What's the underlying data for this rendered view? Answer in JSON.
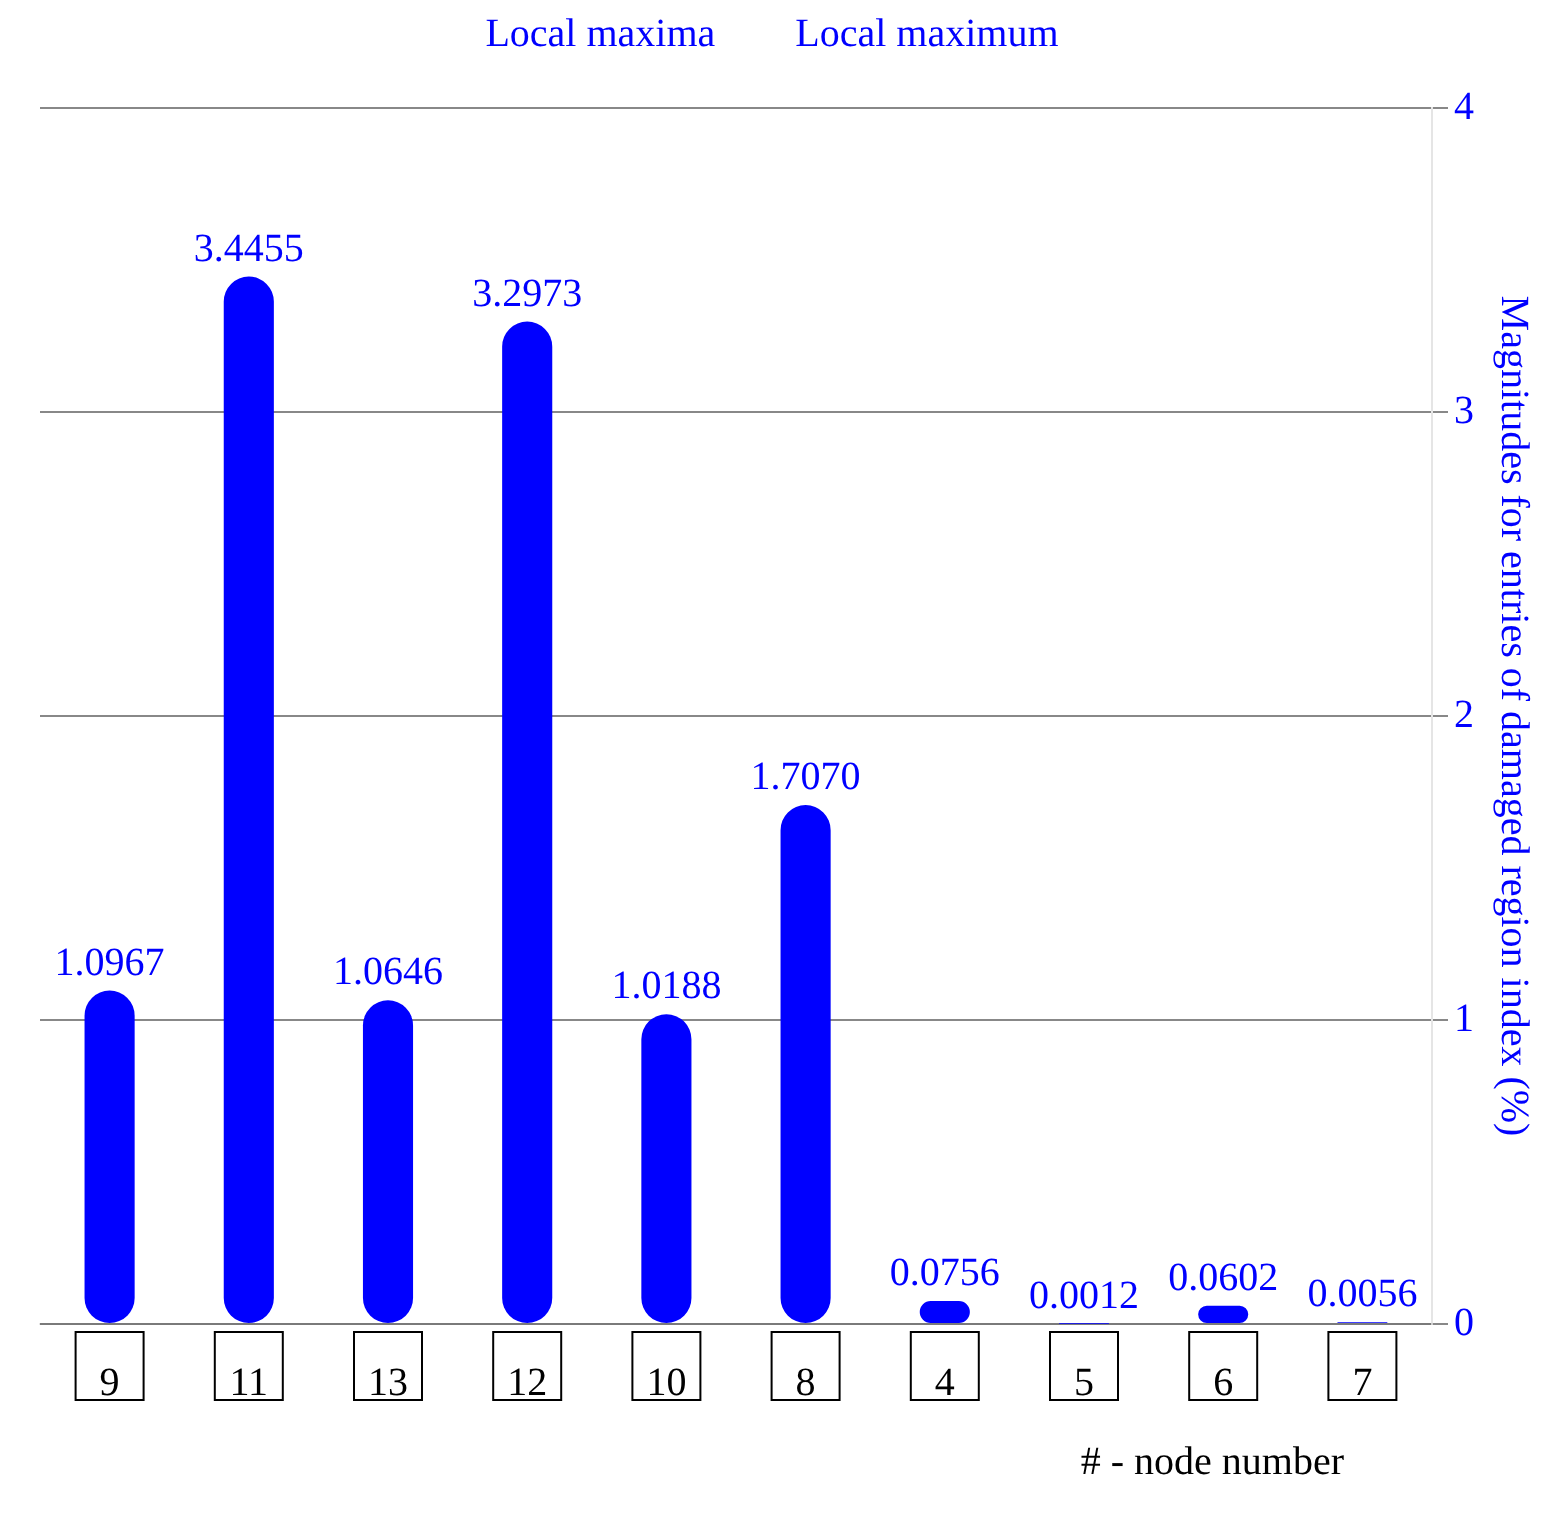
{
  "chart_data": {
    "type": "bar",
    "categories": [
      "9",
      "11",
      "13",
      "12",
      "10",
      "8",
      "4",
      "5",
      "6",
      "7"
    ],
    "values": [
      1.0967,
      3.4455,
      1.0646,
      3.2973,
      1.0188,
      1.707,
      0.0756,
      0.0012,
      0.0602,
      0.0056
    ],
    "value_labels": [
      "1.0967",
      "3.4455",
      "1.0646",
      "3.2973",
      "1.0188",
      "1.7070",
      "0.0756",
      "0.0012",
      "0.0602",
      "0.0056"
    ],
    "color": "#0000ff",
    "ylabel": "Magnitudes for entries of damaged region index (%)",
    "ylim": [
      0,
      4
    ],
    "yticks": [
      0,
      1,
      2,
      3,
      4
    ],
    "grid": "y",
    "legend": false,
    "annotations": [
      "Local maxima",
      "Local maximum",
      "# - node number"
    ]
  }
}
